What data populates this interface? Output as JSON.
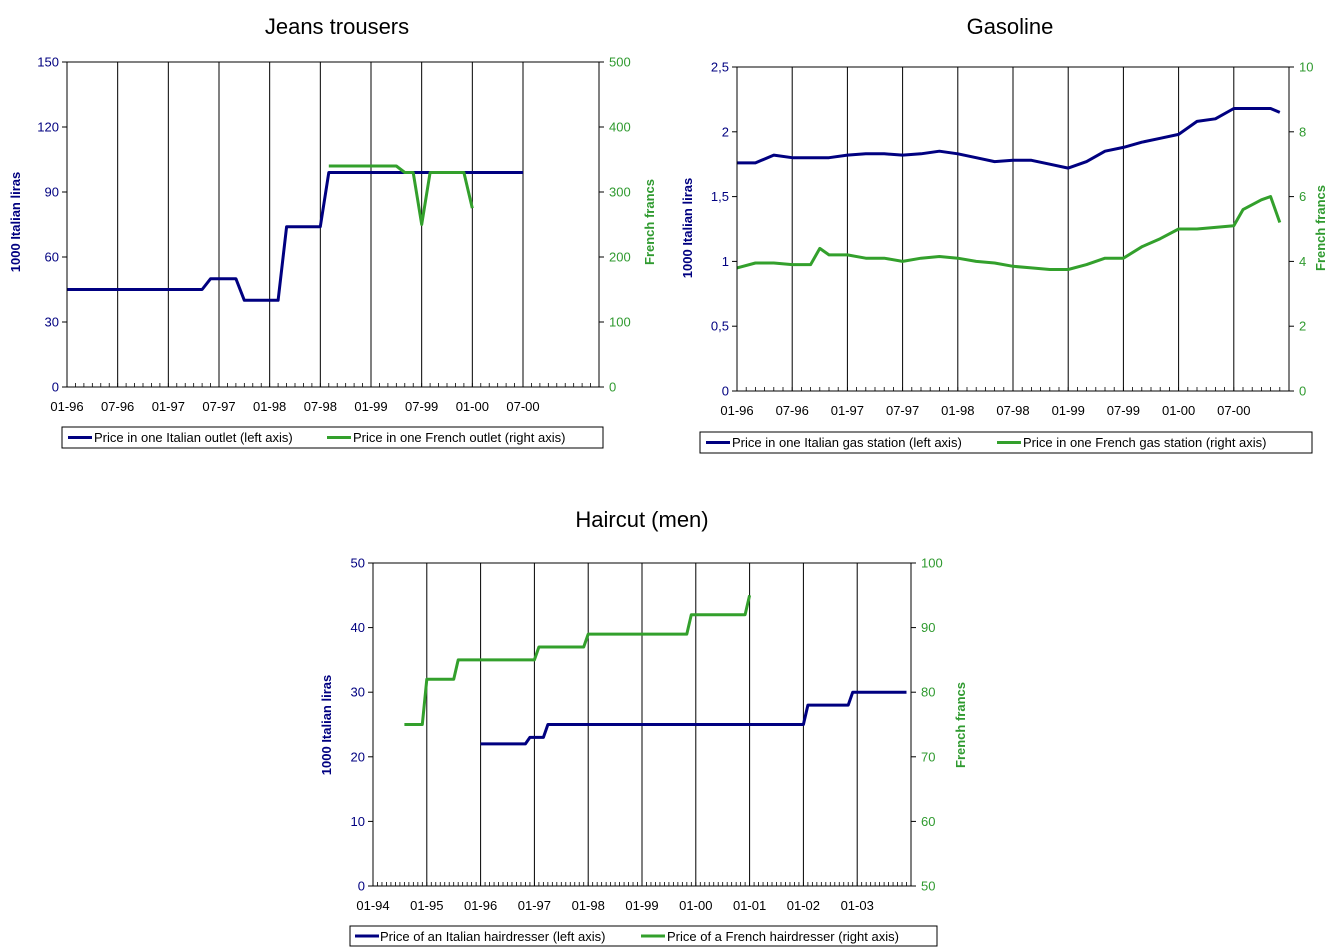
{
  "colors": {
    "italian": "#000080",
    "french": "#33a02c",
    "frame": "#000000"
  },
  "chart_data": [
    {
      "id": "jeans",
      "type": "line",
      "title": "Jeans trousers",
      "ylabel": "1000 Italian liras",
      "ylabel_right": "French francs",
      "ylim": [
        0,
        150
      ],
      "ylim_right": [
        0,
        500
      ],
      "yticks": [
        "0",
        "30",
        "60",
        "90",
        "120",
        "150"
      ],
      "yticks_right": [
        "0",
        "100",
        "200",
        "300",
        "400",
        "500"
      ],
      "x_tick_labels": [
        "01-96",
        "07-96",
        "01-97",
        "07-97",
        "01-98",
        "07-98",
        "01-99",
        "07-99",
        "01-00",
        "07-00"
      ],
      "legend_position": "bottom",
      "series": [
        {
          "name": "Price in one Italian outlet (left axis)",
          "axis": "left",
          "color": "#000080",
          "style": "stepped",
          "points": [
            [
              "1996-01",
              45
            ],
            [
              "1997-05",
              45
            ],
            [
              "1997-06",
              50
            ],
            [
              "1997-09",
              50
            ],
            [
              "1997-10",
              40
            ],
            [
              "1998-02",
              40
            ],
            [
              "1998-03",
              74
            ],
            [
              "1998-07",
              74
            ],
            [
              "1998-08",
              99
            ],
            [
              "2000-07",
              99
            ]
          ]
        },
        {
          "name": "Price in one French outlet (right axis)",
          "axis": "right",
          "color": "#33a02c",
          "style": "stepped",
          "points": [
            [
              "1998-08",
              340
            ],
            [
              "1999-04",
              340
            ],
            [
              "1999-05",
              330
            ],
            [
              "1999-06",
              330
            ],
            [
              "1999-07",
              250
            ],
            [
              "1999-08",
              330
            ],
            [
              "1999-12",
              330
            ],
            [
              "2000-01",
              275
            ]
          ]
        }
      ]
    },
    {
      "id": "gasoline",
      "type": "line",
      "title": "Gasoline",
      "ylabel": "1000 Italian liras",
      "ylabel_right": "French francs",
      "ylim": [
        0,
        2.5
      ],
      "ylim_right": [
        0,
        10
      ],
      "yticks": [
        "0",
        "0,5",
        "1",
        "1,5",
        "2",
        "2,5"
      ],
      "yticks_right": [
        "0",
        "2",
        "4",
        "6",
        "8",
        "10"
      ],
      "x_tick_labels": [
        "01-96",
        "07-96",
        "01-97",
        "07-97",
        "01-98",
        "07-98",
        "01-99",
        "07-99",
        "01-00",
        "07-00"
      ],
      "legend_position": "bottom",
      "series": [
        {
          "name": "Price in one Italian gas station (left axis)",
          "axis": "left",
          "color": "#000080",
          "style": "line",
          "points": [
            [
              "1996-01",
              1.76
            ],
            [
              "1996-03",
              1.76
            ],
            [
              "1996-05",
              1.82
            ],
            [
              "1996-07",
              1.8
            ],
            [
              "1996-09",
              1.8
            ],
            [
              "1996-11",
              1.8
            ],
            [
              "1997-01",
              1.82
            ],
            [
              "1997-03",
              1.83
            ],
            [
              "1997-05",
              1.83
            ],
            [
              "1997-07",
              1.82
            ],
            [
              "1997-09",
              1.83
            ],
            [
              "1997-11",
              1.85
            ],
            [
              "1998-01",
              1.83
            ],
            [
              "1998-03",
              1.8
            ],
            [
              "1998-05",
              1.77
            ],
            [
              "1998-07",
              1.78
            ],
            [
              "1998-09",
              1.78
            ],
            [
              "1998-11",
              1.75
            ],
            [
              "1999-01",
              1.72
            ],
            [
              "1999-03",
              1.77
            ],
            [
              "1999-05",
              1.85
            ],
            [
              "1999-07",
              1.88
            ],
            [
              "1999-09",
              1.92
            ],
            [
              "1999-11",
              1.95
            ],
            [
              "2000-01",
              1.98
            ],
            [
              "2000-03",
              2.08
            ],
            [
              "2000-05",
              2.1
            ],
            [
              "2000-07",
              2.18
            ],
            [
              "2000-09",
              2.18
            ],
            [
              "2000-11",
              2.18
            ],
            [
              "2000-12",
              2.15
            ]
          ]
        },
        {
          "name": "Price in one French  gas station (right axis)",
          "axis": "right",
          "color": "#33a02c",
          "style": "line",
          "points": [
            [
              "1996-01",
              3.8
            ],
            [
              "1996-03",
              3.95
            ],
            [
              "1996-05",
              3.95
            ],
            [
              "1996-07",
              3.9
            ],
            [
              "1996-09",
              3.9
            ],
            [
              "1996-10",
              4.4
            ],
            [
              "1996-11",
              4.2
            ],
            [
              "1997-01",
              4.2
            ],
            [
              "1997-03",
              4.1
            ],
            [
              "1997-05",
              4.1
            ],
            [
              "1997-07",
              4.0
            ],
            [
              "1997-09",
              4.1
            ],
            [
              "1997-11",
              4.15
            ],
            [
              "1998-01",
              4.1
            ],
            [
              "1998-03",
              4.0
            ],
            [
              "1998-05",
              3.95
            ],
            [
              "1998-07",
              3.85
            ],
            [
              "1998-09",
              3.8
            ],
            [
              "1998-11",
              3.75
            ],
            [
              "1999-01",
              3.75
            ],
            [
              "1999-03",
              3.9
            ],
            [
              "1999-05",
              4.1
            ],
            [
              "1999-07",
              4.1
            ],
            [
              "1999-09",
              4.45
            ],
            [
              "1999-11",
              4.7
            ],
            [
              "2000-01",
              5.0
            ],
            [
              "2000-03",
              5.0
            ],
            [
              "2000-05",
              5.05
            ],
            [
              "2000-07",
              5.1
            ],
            [
              "2000-08",
              5.6
            ],
            [
              "2000-10",
              5.9
            ],
            [
              "2000-11",
              6.0
            ],
            [
              "2000-12",
              5.2
            ]
          ]
        }
      ]
    },
    {
      "id": "haircut",
      "type": "line",
      "title": "Haircut (men)",
      "ylabel": "1000 Italian liras",
      "ylabel_right": "French francs",
      "ylim": [
        0,
        50
      ],
      "ylim_right": [
        50,
        100
      ],
      "yticks": [
        "0",
        "10",
        "20",
        "30",
        "40",
        "50"
      ],
      "yticks_right": [
        "50",
        "60",
        "70",
        "80",
        "90",
        "100"
      ],
      "x_tick_labels": [
        "01-94",
        "01-95",
        "01-96",
        "01-97",
        "01-98",
        "01-99",
        "01-00",
        "01-01",
        "01-02",
        "01-03"
      ],
      "legend_position": "bottom",
      "series": [
        {
          "name": "Price of an Italian hairdresser (left axis)",
          "axis": "left",
          "color": "#000080",
          "style": "stepped",
          "points": [
            [
              "1996-01",
              22
            ],
            [
              "1996-11",
              22
            ],
            [
              "1996-12",
              23
            ],
            [
              "1997-03",
              23
            ],
            [
              "1997-04",
              25
            ],
            [
              "2002-01",
              25
            ],
            [
              "2002-02",
              28
            ],
            [
              "2002-11",
              28
            ],
            [
              "2002-12",
              30
            ],
            [
              "2003-12",
              30
            ]
          ]
        },
        {
          "name": "Price of a French hairdresser (right axis)",
          "axis": "right",
          "color": "#33a02c",
          "style": "stepped",
          "points": [
            [
              "1994-08",
              75
            ],
            [
              "1994-12",
              75
            ],
            [
              "1995-01",
              82
            ],
            [
              "1995-07",
              82
            ],
            [
              "1995-08",
              85
            ],
            [
              "1997-01",
              85
            ],
            [
              "1997-02",
              87
            ],
            [
              "1997-12",
              87
            ],
            [
              "1998-01",
              89
            ],
            [
              "1999-11",
              89
            ],
            [
              "1999-12",
              92
            ],
            [
              "2000-12",
              92
            ],
            [
              "2001-01",
              95
            ]
          ]
        }
      ]
    }
  ]
}
